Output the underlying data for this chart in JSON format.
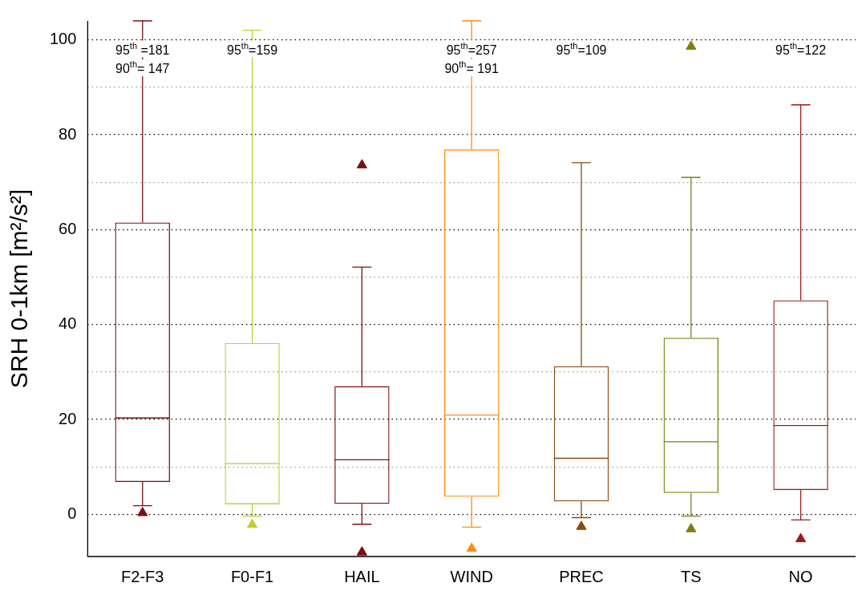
{
  "chart_data": {
    "type": "box",
    "ylabel": "SRH 0-1km [m²/s²]",
    "categories": [
      "F2-F3",
      "F0-F1",
      "HAIL",
      "WIND",
      "PREC",
      "TS",
      "NO"
    ],
    "colors": [
      "#7a1010",
      "#c4cc30",
      "#7a1010",
      "#ff8c10",
      "#8b4a10",
      "#7f7f10",
      "#a01818"
    ],
    "boxes": [
      {
        "low": 1.8,
        "q1": 6.8,
        "median": 20.3,
        "q3": 61.5,
        "high": 104,
        "outliers": [
          0.3
        ]
      },
      {
        "low": -0.4,
        "q1": 2.1,
        "median": 10.7,
        "q3": 36.1,
        "high": 102,
        "outliers": [
          -2.2
        ]
      },
      {
        "low": -2.1,
        "q1": 2.2,
        "median": 11.5,
        "q3": 27,
        "high": 52.1,
        "outliers": [
          73.6,
          -8
        ]
      },
      {
        "low": -2.7,
        "q1": 3.7,
        "median": 20.9,
        "q3": 76.9,
        "high": 104,
        "outliers": [
          -7.2
        ]
      },
      {
        "low": -0.7,
        "q1": 2.7,
        "median": 11.8,
        "q3": 31.2,
        "high": 74.1,
        "outliers": [
          -2.6
        ]
      },
      {
        "low": -0.4,
        "q1": 4.5,
        "median": 15.3,
        "q3": 37.2,
        "high": 71,
        "outliers": [
          98.6,
          -3.1
        ]
      },
      {
        "low": -1.2,
        "q1": 5.1,
        "median": 18.7,
        "q3": 45.1,
        "high": 86.3,
        "outliers": [
          -5.2
        ]
      }
    ],
    "ylim": [
      -8.9,
      104
    ],
    "yticks": [
      0,
      {
        "value": 10,
        "label": null
      },
      20,
      {
        "value": 30,
        "label": null
      },
      40,
      {
        "value": 50,
        "label": null
      },
      60,
      {
        "value": 70,
        "label": null
      },
      80,
      {
        "value": 90,
        "label": null
      },
      100
    ],
    "grid": "y",
    "legend": false,
    "marker": "triangle",
    "annotations": [
      {
        "text": "95$^{th}$ =181",
        "x": "F2-F3",
        "y": 98
      },
      {
        "text": "90$^{th}$= 147",
        "x": "F2-F3",
        "y": 94
      },
      {
        "text": "95$^{th}$=159",
        "x": "F0-F1",
        "y": 98
      },
      {
        "text": "95$^{th}$=257",
        "x": "WIND",
        "y": 98
      },
      {
        "text": "90$^{th}$= 191",
        "x": "WIND",
        "y": 94
      },
      "95$^{th}$=109",
      "95$^{th}$=122"
    ]
  }
}
